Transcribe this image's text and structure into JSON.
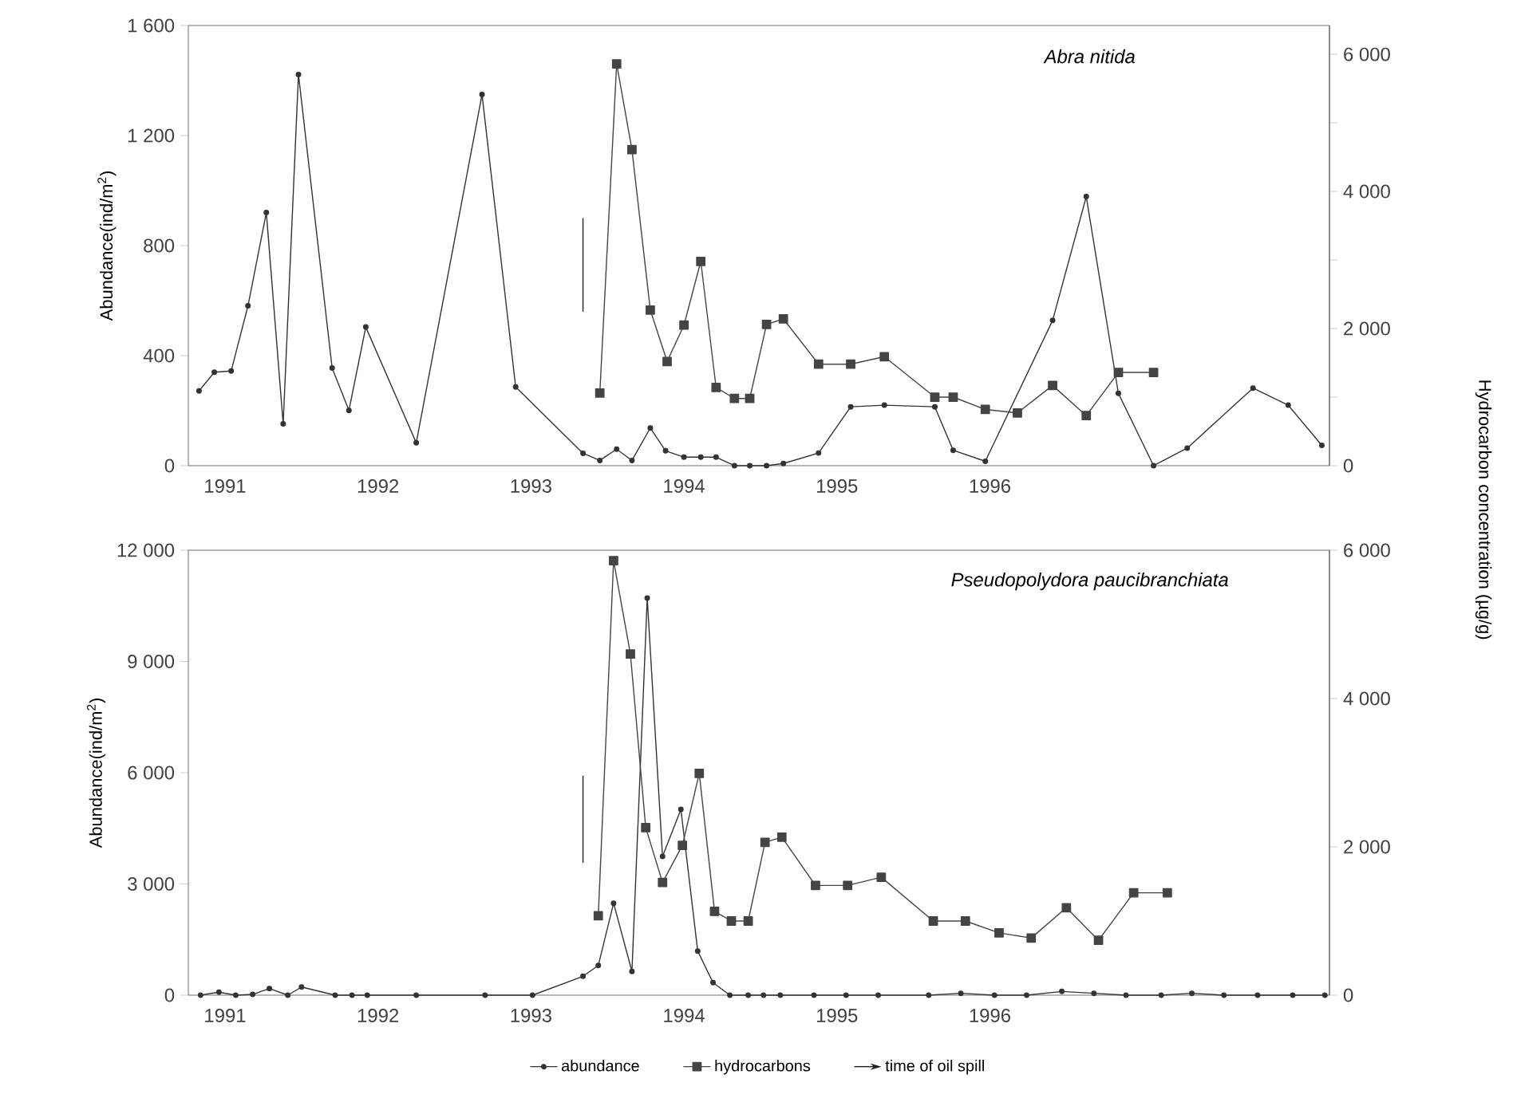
{
  "chart_data": [
    {
      "type": "line",
      "title": "Abra nitida",
      "ylabel": "Abundance(ind/m$^{2}$)",
      "y2label": "Hydrocarbon concentration (µg/g)",
      "xlim": [
        1990.76,
        1998.22
      ],
      "xticks": [
        1991,
        1992,
        1993,
        1994,
        1995,
        1996
      ],
      "ylim": [
        0,
        1600
      ],
      "yticks": [
        0,
        400,
        800,
        {
          "value": 1200,
          "label": "1 200"
        },
        {
          "value": 1600,
          "label": "1 600"
        }
      ],
      "y2lim": [
        0,
        6420
      ],
      "y2ticks": [
        0,
        {
          "value": 1000,
          "label": null
        },
        {
          "value": 2000,
          "label": "2 000"
        },
        {
          "value": 3000,
          "label": null
        },
        {
          "value": 4000,
          "label": "4 000"
        },
        {
          "value": 5000,
          "label": null
        },
        {
          "value": 6000,
          "label": "6 000"
        }
      ],
      "series": [
        {
          "color": "#333333",
          "marker": "circle",
          "x": [
            1990.83,
            1990.93,
            1991.04,
            1991.15,
            1991.27,
            1991.38,
            1991.48,
            1991.7,
            1991.81,
            1991.92,
            1992.25,
            1992.68,
            1992.9,
            1993.34,
            1993.45,
            1993.56,
            1993.66,
            1993.78,
            1993.88,
            1994.0,
            1994.11,
            1994.21,
            1994.33,
            1994.43,
            1994.54,
            1994.65,
            1994.88,
            1995.09,
            1995.31,
            1995.64,
            1995.76,
            1995.97,
            1996.41,
            1996.63,
            1996.84,
            1997.07,
            1997.29,
            1997.72,
            1997.95,
            1998.17
          ],
          "values": [
            272,
            340,
            344,
            581,
            920,
            152,
            1422,
            355,
            201,
            504,
            83,
            1349,
            286,
            45,
            19,
            60,
            19,
            137,
            54,
            31,
            31,
            31,
            0,
            0,
            0,
            8,
            46,
            214,
            220,
            214,
            56,
            16,
            528,
            978,
            263,
            0,
            64,
            282,
            220,
            74
          ]
        },
        {
          "color": "#444444",
          "marker": "square",
          "axis": "y2",
          "x": [
            1993.45,
            1993.56,
            1993.66,
            1993.78,
            1993.89,
            1994.0,
            1994.11,
            1994.21,
            1994.33,
            1994.43,
            1994.54,
            1994.65,
            1994.88,
            1995.09,
            1995.31,
            1995.64,
            1995.76,
            1995.97,
            1996.18,
            1996.41,
            1996.63,
            1996.84,
            1997.07
          ],
          "values": [
            1060,
            5860,
            4610,
            2270,
            1520,
            2050,
            2980,
            1140,
            980,
            980,
            2060,
            2140,
            1480,
            1480,
            1590,
            1000,
            1000,
            820,
            770,
            1170,
            730,
            1360,
            1360
          ]
        },
        {
          "color": "#222222",
          "marker": "none",
          "x": [
            1993.34,
            1993.34
          ],
          "values": [
            900,
            560
          ]
        }
      ]
    },
    {
      "type": "line",
      "title": "Pseudopolydora paucibranchiata",
      "ylabel": "Abundance(ind/m$^{2}$)",
      "legend": "bottom",
      "xlim": [
        1990.76,
        1998.22
      ],
      "xticks": [
        1991,
        1992,
        1993,
        1994,
        1995,
        1996
      ],
      "ylim": [
        0,
        12000
      ],
      "yticks": [
        0,
        {
          "value": 3000,
          "label": "3 000"
        },
        {
          "value": 6000,
          "label": "6 000"
        },
        {
          "value": 9000,
          "label": "9 000"
        },
        {
          "value": 12000,
          "label": "12 000"
        }
      ],
      "y2lim": [
        0,
        6000
      ],
      "y2ticks": [
        0,
        {
          "value": 2000,
          "label": "2 000"
        },
        {
          "value": 4000,
          "label": "4 000"
        },
        {
          "value": 6000,
          "label": "6 000"
        }
      ],
      "series": [
        {
          "name": "abundance",
          "color": "#333333",
          "marker": "circle",
          "x": [
            1990.84,
            1990.96,
            1991.07,
            1991.18,
            1991.29,
            1991.41,
            1991.5,
            1991.72,
            1991.83,
            1991.93,
            1992.25,
            1992.7,
            1993.01,
            1993.34,
            1993.44,
            1993.54,
            1993.66,
            1993.76,
            1993.86,
            1993.98,
            1994.09,
            1994.19,
            1994.3,
            1994.42,
            1994.52,
            1994.63,
            1994.85,
            1995.06,
            1995.27,
            1995.6,
            1995.81,
            1996.03,
            1996.24,
            1996.47,
            1996.68,
            1996.89,
            1997.12,
            1997.32,
            1997.53,
            1997.75,
            1997.98,
            1998.19
          ],
          "values": [
            0,
            80,
            0,
            20,
            180,
            0,
            220,
            0,
            0,
            0,
            0,
            0,
            0,
            510,
            800,
            2480,
            640,
            10710,
            3740,
            5010,
            1190,
            340,
            0,
            0,
            0,
            0,
            0,
            0,
            0,
            0,
            50,
            0,
            0,
            100,
            50,
            0,
            0,
            50,
            0,
            0,
            0,
            0
          ]
        },
        {
          "name": "hydrocarbons",
          "color": "#444444",
          "marker": "square",
          "axis": "y2",
          "x": [
            1993.44,
            1993.54,
            1993.65,
            1993.75,
            1993.86,
            1993.99,
            1994.1,
            1994.2,
            1994.31,
            1994.42,
            1994.53,
            1994.64,
            1994.86,
            1995.07,
            1995.29,
            1995.63,
            1995.84,
            1996.06,
            1996.27,
            1996.5,
            1996.71,
            1996.94,
            1997.16
          ],
          "values": [
            1070,
            5860,
            4600,
            2260,
            1520,
            2020,
            2990,
            1130,
            1000,
            1000,
            2060,
            2130,
            1480,
            1480,
            1590,
            1000,
            1000,
            840,
            770,
            1180,
            740,
            1380,
            1380
          ]
        },
        {
          "name": "time of oil spill",
          "color": "#222222",
          "marker": "none",
          "x": [
            1993.34,
            1993.34
          ],
          "values": [
            5920,
            3570
          ]
        }
      ]
    }
  ]
}
